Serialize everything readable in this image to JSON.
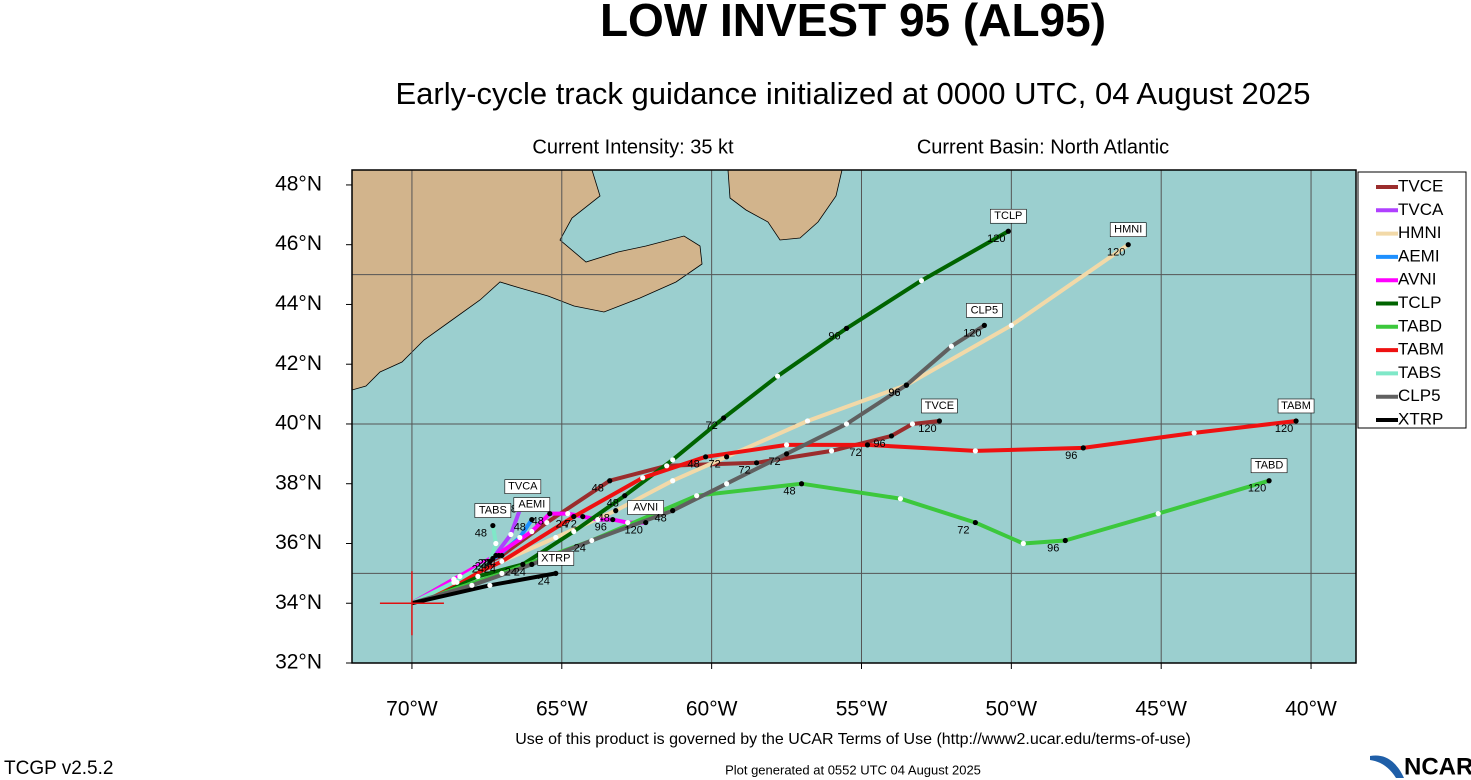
{
  "chart_data": {
    "type": "track",
    "title": "LOW INVEST 95 (AL95)",
    "subtitle": "Early-cycle track guidance initialized at 0000 UTC, 04 August 2025",
    "intensity": "Current Intensity: 35 kt",
    "basin": "Current Basin: North Atlantic",
    "xlim": [
      -72,
      -38.5
    ],
    "ylim": [
      32,
      48.5
    ],
    "xticks": [
      {
        "value": -70,
        "label": "70°W"
      },
      {
        "value": -65,
        "label": "65°W"
      },
      {
        "value": -60,
        "label": "60°W"
      },
      {
        "value": -55,
        "label": "55°W"
      },
      {
        "value": -50,
        "label": "50°W"
      },
      {
        "value": -45,
        "label": "45°W"
      },
      {
        "value": -40,
        "label": "40°W"
      }
    ],
    "yticks": [
      {
        "value": 32,
        "label": "32°N"
      },
      {
        "value": 34,
        "label": "34°N"
      },
      {
        "value": 36,
        "label": "36°N"
      },
      {
        "value": 38,
        "label": "38°N"
      },
      {
        "value": 40,
        "label": "40°N"
      },
      {
        "value": 42,
        "label": "42°N"
      },
      {
        "value": 44,
        "label": "44°N"
      },
      {
        "value": 46,
        "label": "46°N"
      },
      {
        "value": 48,
        "label": "48°N"
      }
    ],
    "xgrid": [
      -70,
      -65,
      -60,
      -55,
      -50,
      -45,
      -40
    ],
    "ygrid": [
      35,
      40,
      45
    ],
    "grid": true,
    "current": {
      "lon": -70,
      "lat": 34,
      "color": "#e01010"
    },
    "series": [
      {
        "name": "TVCE",
        "color": "#9b2d2d",
        "tau": [
          0,
          12,
          24,
          36,
          48,
          60,
          72,
          84,
          96,
          108,
          120
        ],
        "lon": [
          -70,
          -68.6,
          -67,
          -65.5,
          -63.4,
          -61.5,
          -58.5,
          -56,
          -54,
          -53.3,
          -52.4
        ],
        "lat": [
          34,
          34.8,
          35.6,
          36.7,
          38.1,
          38.6,
          38.7,
          39.1,
          39.6,
          40.0,
          40.1
        ]
      },
      {
        "name": "TVCA",
        "color": "#b040ff",
        "tau": [
          0,
          12,
          24,
          36,
          48
        ],
        "lon": [
          -70,
          -68.6,
          -67.3,
          -66.7,
          -66.3
        ],
        "lat": [
          34,
          34.8,
          35.5,
          36.3,
          37.4
        ]
      },
      {
        "name": "HMNI",
        "color": "#f2d9a8",
        "tau": [
          0,
          12,
          24,
          36,
          48,
          60,
          72,
          84,
          96,
          108,
          120
        ],
        "lon": [
          -70,
          -68.5,
          -67,
          -65.2,
          -63.2,
          -61.3,
          -59.5,
          -56.8,
          -53.5,
          -50,
          -46.1
        ],
        "lat": [
          34,
          34.7,
          35.4,
          36.2,
          37.1,
          38.1,
          38.9,
          40.1,
          41.3,
          43.3,
          46.0
        ]
      },
      {
        "name": "AEMI",
        "color": "#1e90ff",
        "tau": [
          0,
          12,
          24,
          36,
          48
        ],
        "lon": [
          -70,
          -68.4,
          -67.1,
          -66.4,
          -66
        ],
        "lat": [
          34,
          34.9,
          35.6,
          36.2,
          36.8
        ]
      },
      {
        "name": "AVNI",
        "color": "#ff00ff",
        "tau": [
          0,
          12,
          24,
          36,
          48,
          60,
          72,
          84,
          96,
          108,
          120
        ],
        "lon": [
          -70,
          -68.6,
          -67.2,
          -66,
          -65.4,
          -64.8,
          -64.3,
          -63.8,
          -63.3,
          -62.8,
          -62.2
        ],
        "lat": [
          34,
          34.8,
          35.6,
          36.4,
          37.0,
          37.0,
          36.9,
          36.8,
          36.8,
          36.7,
          36.7
        ]
      },
      {
        "name": "TCLP",
        "color": "#006400",
        "tau": [
          0,
          12,
          24,
          36,
          48,
          60,
          72,
          84,
          96,
          108,
          120
        ],
        "lon": [
          -70,
          -67.8,
          -66.3,
          -64.6,
          -62.9,
          -61.3,
          -59.6,
          -57.8,
          -55.5,
          -53,
          -50.1
        ],
        "lat": [
          34,
          34.9,
          35.3,
          36.4,
          37.6,
          38.8,
          40.2,
          41.6,
          43.2,
          44.8,
          46.45
        ]
      },
      {
        "name": "TABD",
        "color": "#3cc83c",
        "tau": [
          0,
          12,
          24,
          36,
          48,
          60,
          72,
          84,
          96,
          108,
          120
        ],
        "lon": [
          -70,
          -67,
          -64,
          -60.5,
          -57,
          -53.7,
          -51.2,
          -49.6,
          -48.2,
          -45.1,
          -41.4
        ],
        "lat": [
          34,
          35,
          36.1,
          37.6,
          38,
          37.5,
          36.7,
          36,
          36.1,
          37,
          38.1
        ]
      },
      {
        "name": "TABM",
        "color": "#ee1111",
        "tau": [
          0,
          12,
          24,
          36,
          48,
          60,
          72,
          84,
          96,
          108,
          120
        ],
        "lon": [
          -70,
          -67,
          -64.6,
          -62.3,
          -60.2,
          -57.5,
          -54.8,
          -51.2,
          -47.6,
          -43.9,
          -40.5
        ],
        "lat": [
          34,
          35.4,
          36.9,
          38.2,
          38.9,
          39.3,
          39.3,
          39.1,
          39.2,
          39.7,
          40.1
        ]
      },
      {
        "name": "TABS",
        "color": "#7fe8c8",
        "tau": [
          0,
          12,
          24,
          36,
          48
        ],
        "lon": [
          -70,
          -68.6,
          -67.4,
          -67.2,
          -67.3
        ],
        "lat": [
          34,
          34.7,
          35.4,
          36.0,
          36.6
        ]
      },
      {
        "name": "CLP5",
        "color": "#606060",
        "tau": [
          0,
          12,
          24,
          36,
          48,
          60,
          72,
          84,
          96,
          108,
          120
        ],
        "lon": [
          -70,
          -68,
          -66,
          -64,
          -61.3,
          -59.5,
          -57.5,
          -55.5,
          -53.5,
          -52,
          -50.9
        ],
        "lat": [
          34,
          34.6,
          35.3,
          36.1,
          37.1,
          38.0,
          39.0,
          40.0,
          41.3,
          42.6,
          43.3
        ]
      },
      {
        "name": "XTRP",
        "color": "#000000",
        "tau": [
          0,
          12,
          24
        ],
        "lon": [
          -70,
          -67.4,
          -65.2
        ],
        "lat": [
          34,
          34.6,
          35.0
        ]
      }
    ]
  },
  "footer": {
    "terms": "Use of this product is governed by the UCAR Terms of Use (http://www2.ucar.edu/terms-of-use)",
    "version": "TCGP v2.5.2",
    "generated": "Plot generated at 0552 UTC   04 August 2025",
    "logo": "NCAR"
  }
}
